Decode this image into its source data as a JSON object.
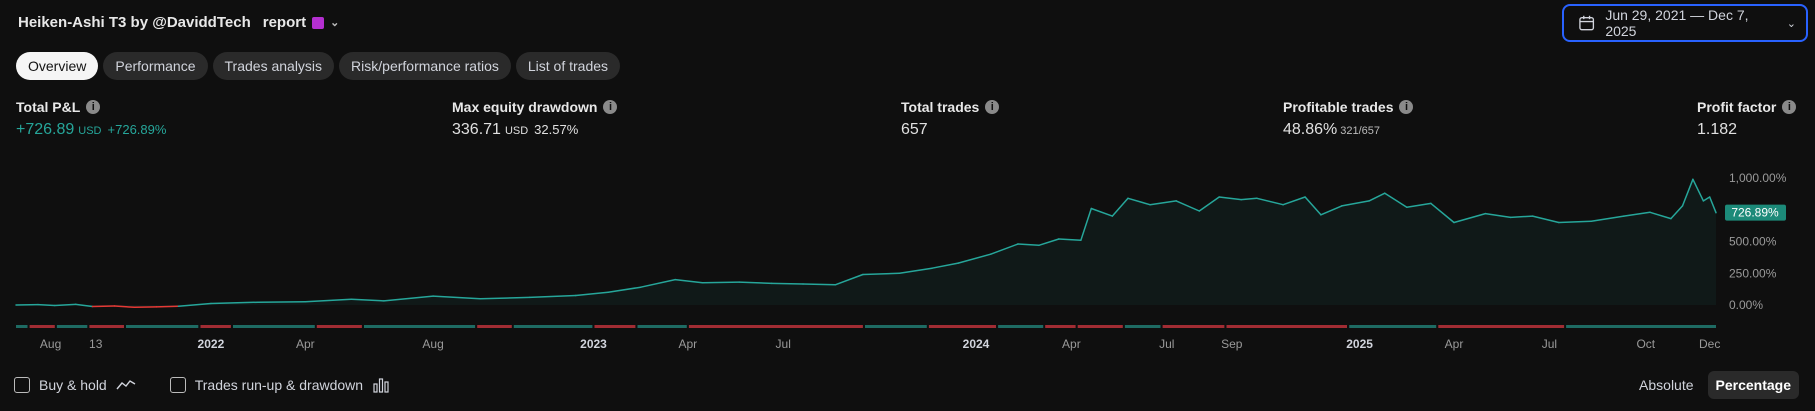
{
  "header": {
    "title_prefix": "Heiken-Ashi T3 by @DaviddTech",
    "title_glyph": "",
    "title_suffix": "report",
    "date_range": "Jun 29, 2021 — Dec 7, 2025"
  },
  "tabs": [
    {
      "label": "Overview",
      "active": true
    },
    {
      "label": "Performance",
      "active": false
    },
    {
      "label": "Trades analysis",
      "active": false
    },
    {
      "label": "Risk/performance ratios",
      "active": false
    },
    {
      "label": "List of trades",
      "active": false
    }
  ],
  "metrics": {
    "total_pnl": {
      "label": "Total P&L",
      "value": "+726.89",
      "unit": "USD",
      "pct": "+726.89%"
    },
    "max_drawdown": {
      "label": "Max equity drawdown",
      "value": "336.71",
      "unit": "USD",
      "pct": "32.57%"
    },
    "total_trades": {
      "label": "Total trades",
      "value": "657"
    },
    "profitable_trades": {
      "label": "Profitable trades",
      "value": "48.86%",
      "fraction": "321/657"
    },
    "profit_factor": {
      "label": "Profit factor",
      "value": "1.182"
    }
  },
  "colors": {
    "line": "#26a69a",
    "negative_line": "#e53935",
    "bar_green": "#1e6b63",
    "bar_red": "#a12c33",
    "accent": "#2962ff",
    "badge": "#1c8a79"
  },
  "chart_data": {
    "type": "area",
    "title": "",
    "xlabel": "",
    "ylabel": "",
    "unit": "%",
    "x_range": [
      "2021-06-29",
      "2025-12-07"
    ],
    "ylim": [
      0,
      1000
    ],
    "y_ticks": [
      "1,000.00%",
      "750.00%",
      "500.00%",
      "250.00%",
      "0.00%"
    ],
    "current_value": 726.89,
    "current_label": "726.89%",
    "x_ticks": [
      {
        "label": "Aug",
        "date": "2021-08-01",
        "bold": false
      },
      {
        "label": "13",
        "date": "2021-09-13",
        "bold": false
      },
      {
        "label": "2022",
        "date": "2022-01-01",
        "bold": true
      },
      {
        "label": "Apr",
        "date": "2022-04-01",
        "bold": false
      },
      {
        "label": "Aug",
        "date": "2022-08-01",
        "bold": false
      },
      {
        "label": "2023",
        "date": "2023-01-01",
        "bold": true
      },
      {
        "label": "Apr",
        "date": "2023-04-01",
        "bold": false
      },
      {
        "label": "Jul",
        "date": "2023-07-01",
        "bold": false
      },
      {
        "label": "2024",
        "date": "2024-01-01",
        "bold": true
      },
      {
        "label": "Apr",
        "date": "2024-04-01",
        "bold": false
      },
      {
        "label": "Jul",
        "date": "2024-07-01",
        "bold": false
      },
      {
        "label": "Sep",
        "date": "2024-09-01",
        "bold": false
      },
      {
        "label": "2025",
        "date": "2025-01-01",
        "bold": true
      },
      {
        "label": "Apr",
        "date": "2025-04-01",
        "bold": false
      },
      {
        "label": "Jul",
        "date": "2025-07-01",
        "bold": false
      },
      {
        "label": "Oct",
        "date": "2025-10-01",
        "bold": false
      },
      {
        "label": "Dec",
        "date": "2025-12-01",
        "bold": false
      }
    ],
    "series": [
      {
        "name": "",
        "points": [
          [
            "2021-06-29",
            0
          ],
          [
            "2021-07-20",
            3
          ],
          [
            "2021-08-05",
            -4
          ],
          [
            "2021-08-25",
            5
          ],
          [
            "2021-09-10",
            -12
          ],
          [
            "2021-10-01",
            -8
          ],
          [
            "2021-10-20",
            -18
          ],
          [
            "2021-11-10",
            -15
          ],
          [
            "2021-12-01",
            -10
          ],
          [
            "2022-01-01",
            12
          ],
          [
            "2022-02-15",
            22
          ],
          [
            "2022-04-01",
            25
          ],
          [
            "2022-05-15",
            45
          ],
          [
            "2022-06-15",
            32
          ],
          [
            "2022-08-01",
            70
          ],
          [
            "2022-09-15",
            50
          ],
          [
            "2022-11-01",
            60
          ],
          [
            "2022-12-15",
            75
          ],
          [
            "2023-01-15",
            100
          ],
          [
            "2023-02-15",
            140
          ],
          [
            "2023-03-20",
            200
          ],
          [
            "2023-04-15",
            175
          ],
          [
            "2023-05-20",
            180
          ],
          [
            "2023-06-20",
            170
          ],
          [
            "2023-07-20",
            165
          ],
          [
            "2023-08-20",
            160
          ],
          [
            "2023-09-15",
            240
          ],
          [
            "2023-10-20",
            250
          ],
          [
            "2023-11-20",
            290
          ],
          [
            "2023-12-15",
            330
          ],
          [
            "2024-01-15",
            400
          ],
          [
            "2024-02-10",
            480
          ],
          [
            "2024-03-01",
            470
          ],
          [
            "2024-03-20",
            520
          ],
          [
            "2024-04-10",
            510
          ],
          [
            "2024-04-20",
            760
          ],
          [
            "2024-05-10",
            700
          ],
          [
            "2024-05-25",
            840
          ],
          [
            "2024-06-15",
            790
          ],
          [
            "2024-07-10",
            820
          ],
          [
            "2024-08-01",
            740
          ],
          [
            "2024-08-20",
            850
          ],
          [
            "2024-09-10",
            830
          ],
          [
            "2024-09-25",
            840
          ],
          [
            "2024-10-20",
            790
          ],
          [
            "2024-11-10",
            850
          ],
          [
            "2024-11-25",
            710
          ],
          [
            "2024-12-15",
            780
          ],
          [
            "2025-01-10",
            820
          ],
          [
            "2025-01-25",
            880
          ],
          [
            "2025-02-15",
            770
          ],
          [
            "2025-03-10",
            800
          ],
          [
            "2025-04-01",
            650
          ],
          [
            "2025-05-01",
            720
          ],
          [
            "2025-05-25",
            690
          ],
          [
            "2025-06-15",
            700
          ],
          [
            "2025-07-10",
            650
          ],
          [
            "2025-08-10",
            660
          ],
          [
            "2025-09-10",
            700
          ],
          [
            "2025-10-05",
            730
          ],
          [
            "2025-10-25",
            680
          ],
          [
            "2025-11-05",
            780
          ],
          [
            "2025-11-15",
            990
          ],
          [
            "2025-11-25",
            820
          ],
          [
            "2025-12-01",
            850
          ],
          [
            "2025-12-07",
            726.89
          ]
        ]
      }
    ],
    "trade_strip": [
      [
        "2021-06-29",
        "2021-07-10",
        "g"
      ],
      [
        "2021-07-12",
        "2021-08-05",
        "r"
      ],
      [
        "2021-08-07",
        "2021-09-05",
        "g"
      ],
      [
        "2021-09-07",
        "2021-10-10",
        "r"
      ],
      [
        "2021-10-12",
        "2021-12-20",
        "g"
      ],
      [
        "2021-12-22",
        "2022-01-20",
        "r"
      ],
      [
        "2022-01-22",
        "2022-04-10",
        "g"
      ],
      [
        "2022-04-12",
        "2022-05-25",
        "r"
      ],
      [
        "2022-05-27",
        "2022-09-10",
        "g"
      ],
      [
        "2022-09-12",
        "2022-10-15",
        "r"
      ],
      [
        "2022-10-17",
        "2022-12-31",
        "g"
      ],
      [
        "2023-01-02",
        "2023-02-10",
        "r"
      ],
      [
        "2023-02-12",
        "2023-03-31",
        "g"
      ],
      [
        "2023-04-02",
        "2023-09-15",
        "r"
      ],
      [
        "2023-09-17",
        "2023-11-15",
        "g"
      ],
      [
        "2023-11-17",
        "2024-01-20",
        "r"
      ],
      [
        "2024-01-22",
        "2024-03-05",
        "g"
      ],
      [
        "2024-03-07",
        "2024-04-05",
        "r"
      ],
      [
        "2024-04-07",
        "2024-05-20",
        "r"
      ],
      [
        "2024-05-22",
        "2024-06-25",
        "g"
      ],
      [
        "2024-06-27",
        "2024-08-25",
        "r"
      ],
      [
        "2024-08-27",
        "2024-12-20",
        "r"
      ],
      [
        "2024-12-22",
        "2025-03-15",
        "g"
      ],
      [
        "2025-03-17",
        "2025-07-15",
        "r"
      ],
      [
        "2025-07-17",
        "2025-12-07",
        "g"
      ]
    ]
  },
  "footer": {
    "buy_hold": "Buy & hold",
    "runup": "Trades run-up & drawdown",
    "absolute": "Absolute",
    "percentage": "Percentage"
  }
}
